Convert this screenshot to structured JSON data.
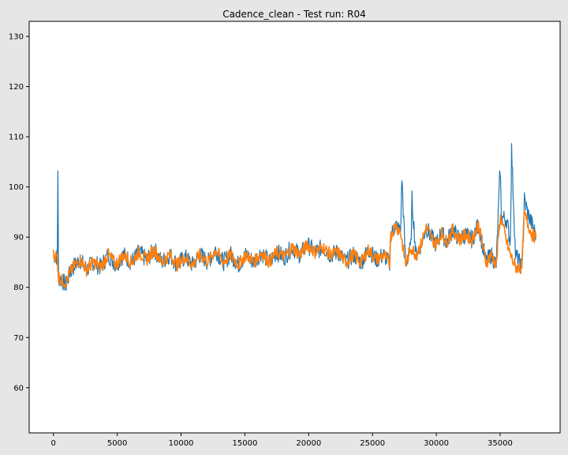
{
  "figure": {
    "background": "#e6e6e6",
    "axes_background": "#ffffff"
  },
  "chart_data": {
    "type": "line",
    "title": "Cadence_clean - Test run: R04",
    "xlabel": "",
    "ylabel": "",
    "xlim": [
      -1900,
      39700
    ],
    "ylim": [
      51,
      133
    ],
    "xticks": [
      0,
      5000,
      10000,
      15000,
      20000,
      25000,
      30000,
      35000
    ],
    "xtick_labels": [
      "0",
      "5000",
      "10000",
      "15000",
      "20000",
      "25000",
      "30000",
      "35000"
    ],
    "yticks": [
      60,
      70,
      80,
      90,
      100,
      110,
      120,
      130
    ],
    "ytick_labels": [
      "60",
      "70",
      "80",
      "90",
      "100",
      "110",
      "120",
      "130"
    ],
    "grid": false,
    "legend": "none",
    "series": [
      {
        "color": "#1f77b4",
        "style": "raw, noisy band",
        "x": [
          0,
          300,
          350,
          400,
          600,
          1000,
          1300,
          1700,
          2100,
          2600,
          3100,
          3700,
          4300,
          4900,
          5500,
          6100,
          6700,
          7300,
          7900,
          8500,
          9100,
          9700,
          10300,
          10900,
          11500,
          12100,
          12700,
          13300,
          13900,
          14500,
          15100,
          15700,
          16300,
          16900,
          17500,
          18100,
          18700,
          19300,
          19900,
          20500,
          21100,
          21700,
          22300,
          22900,
          23500,
          24100,
          24700,
          25300,
          25900,
          26350,
          26400,
          26800,
          27200,
          27300,
          27600,
          28000,
          28100,
          28400,
          28800,
          29200,
          29600,
          30000,
          30400,
          30800,
          31300,
          31800,
          32300,
          32800,
          33300,
          33700,
          33900,
          34300,
          34700,
          35000,
          35100,
          35500,
          35800,
          35900,
          36200,
          36700,
          36900,
          37200,
          37500,
          37800
        ],
        "y": [
          86.5,
          86,
          104,
          82,
          81.5,
          80.5,
          83,
          84.5,
          85.5,
          83.5,
          85,
          84,
          86.5,
          84.5,
          86.5,
          85,
          87,
          85.5,
          87.5,
          85,
          86.5,
          84.5,
          86,
          84.5,
          86.5,
          85,
          87.5,
          85,
          86.5,
          84.5,
          86.5,
          85,
          87,
          85,
          87,
          86,
          88,
          86.5,
          88.5,
          87,
          88,
          86.5,
          87,
          85,
          86.5,
          85,
          87.5,
          85.5,
          86.5,
          84.5,
          90,
          92.5,
          91,
          102,
          84.5,
          88,
          97.5,
          86.5,
          88.5,
          92,
          90,
          88.5,
          91,
          89,
          91.5,
          89.5,
          90.5,
          89.5,
          92.5,
          87.5,
          85,
          86.5,
          84.5,
          104,
          94,
          93.5,
          89,
          107.5,
          86.5,
          84,
          97.5,
          94.5,
          92.5,
          90.5
        ],
        "noise": 1.8
      },
      {
        "color": "#ff7f0e",
        "style": "smoothed, thick band",
        "x": [
          0,
          300,
          400,
          600,
          1000,
          1300,
          1700,
          2100,
          2600,
          3100,
          3700,
          4300,
          4900,
          5500,
          6100,
          6700,
          7300,
          7900,
          8500,
          9100,
          9700,
          10300,
          10900,
          11500,
          12100,
          12700,
          13300,
          13900,
          14500,
          15100,
          15700,
          16300,
          16900,
          17500,
          18100,
          18700,
          19300,
          19900,
          20500,
          21100,
          21700,
          22300,
          22900,
          23500,
          24100,
          24700,
          25300,
          25900,
          26350,
          26400,
          26800,
          27200,
          27600,
          28000,
          28400,
          28800,
          29200,
          29600,
          30000,
          30400,
          30800,
          31300,
          31800,
          32300,
          32800,
          33300,
          33700,
          33900,
          34300,
          34700,
          35000,
          35100,
          35500,
          35800,
          36200,
          36700,
          36900,
          37200,
          37500,
          37800
        ],
        "y": [
          86.5,
          86,
          82,
          81.5,
          81,
          83,
          84.5,
          85.5,
          83.5,
          85,
          84,
          86.5,
          84.5,
          86.5,
          85,
          87,
          85.5,
          87.5,
          85,
          86.5,
          84.5,
          86,
          84.5,
          86.5,
          85,
          87.5,
          85,
          86.5,
          84.5,
          86.5,
          85,
          87,
          85,
          87,
          86,
          88,
          86.5,
          88.5,
          87,
          88,
          86.5,
          87,
          85,
          86.5,
          85,
          87.5,
          85.5,
          86.5,
          84.5,
          90,
          92.5,
          91,
          84.5,
          88,
          86.5,
          88.5,
          92,
          90,
          88.5,
          91,
          89,
          91.5,
          89.5,
          90.5,
          89.5,
          92.5,
          87.5,
          85,
          86.5,
          84.5,
          94,
          93.5,
          89,
          86.5,
          84,
          84,
          94.5,
          92.5,
          90.5,
          90
        ],
        "noise": 1.3
      }
    ]
  }
}
